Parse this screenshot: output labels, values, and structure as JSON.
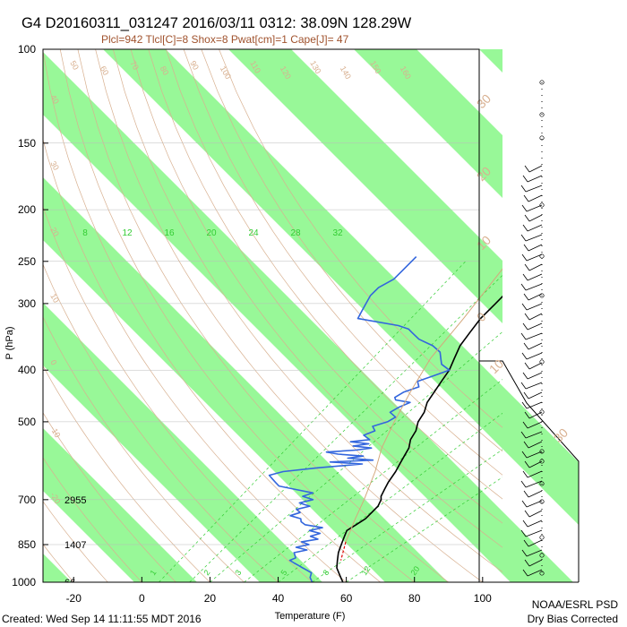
{
  "header": {
    "title": "G4 D20160311_031247 2016/03/11 0312: 38.09N 128.29W",
    "indices": "Plcl=942 Tlcl[C]=8 Shox=8 Pwat[cm]=1 Cape[J]= 47"
  },
  "footer": {
    "created": "Created: Wed Sep 14 11:11:55 MDT 2016",
    "credit_line1": "NOAA/ESRL PSD",
    "credit_line2": "Dry Bias Corrected"
  },
  "colors": {
    "green_band": "#98f898",
    "dry_adiabat": "#d8b090",
    "mixing_ratio": "#33cc33",
    "temperature": "#000000",
    "dewpoint": "#3366dd",
    "parcel": "#d4a87c",
    "lcl_segment": "#dd0000"
  },
  "chart_data": {
    "type": "line",
    "title": "",
    "xlabel": "Temperature (F)",
    "ylabel": "P (hPa)",
    "y_scale": "log (pressure)",
    "y_ticks": [
      1000,
      850,
      700,
      500,
      400,
      300,
      250,
      200,
      150,
      100
    ],
    "x_ticks": [
      -20,
      0,
      20,
      40,
      60,
      80,
      100
    ],
    "xlim": [
      -29,
      99
    ],
    "ylim": [
      1000,
      100
    ],
    "height_labels": [
      {
        "pressure": 1000,
        "label": "66"
      },
      {
        "pressure": 850,
        "label": "1407"
      },
      {
        "pressure": 700,
        "label": "2955"
      }
    ],
    "mixing_ratio_labels": [
      "8",
      "12",
      "16",
      "20",
      "24",
      "28",
      "32"
    ],
    "mixing_ratio_bottom_labels": [
      "1",
      "2",
      "3",
      "5",
      "8",
      "12",
      "20"
    ],
    "dry_adiabat_labels": [
      "50",
      "60",
      "70",
      "80",
      "90",
      "100",
      "110",
      "120",
      "130",
      "140",
      "150",
      "160"
    ],
    "left_adiabat_labels": [
      "40",
      "30",
      "20",
      "10",
      "0",
      "-10",
      "-20"
    ],
    "isotherm_labels": [
      "30",
      "20",
      "10",
      "0",
      "10",
      "30"
    ],
    "series": [
      {
        "name": "Temperature",
        "points": [
          [
            59,
            1000
          ],
          [
            56,
            970
          ],
          [
            53,
            940
          ],
          [
            51,
            910
          ],
          [
            49,
            880
          ],
          [
            48,
            860
          ],
          [
            47,
            840
          ],
          [
            46,
            820
          ],
          [
            45,
            800
          ],
          [
            46,
            780
          ],
          [
            47,
            760
          ],
          [
            47,
            740
          ],
          [
            47,
            720
          ],
          [
            46,
            700
          ],
          [
            45,
            690
          ],
          [
            44,
            670
          ],
          [
            43,
            650
          ],
          [
            42,
            620
          ],
          [
            41,
            600
          ],
          [
            40,
            580
          ],
          [
            39,
            560
          ],
          [
            37,
            540
          ],
          [
            36,
            520
          ],
          [
            34,
            500
          ],
          [
            33,
            480
          ],
          [
            31,
            460
          ],
          [
            30,
            440
          ],
          [
            29,
            420
          ],
          [
            28,
            400
          ],
          [
            26,
            380
          ],
          [
            24,
            360
          ],
          [
            23,
            340
          ],
          [
            22,
            320
          ],
          [
            22,
            300
          ],
          [
            22,
            285
          ],
          [
            22,
            270
          ],
          [
            23,
            250
          ],
          [
            24,
            240
          ],
          [
            26,
            220
          ],
          [
            28,
            210
          ],
          [
            31,
            200
          ],
          [
            34,
            195
          ],
          [
            37,
            190
          ],
          [
            40,
            180
          ],
          [
            41,
            175
          ],
          [
            42,
            170
          ]
        ]
      },
      {
        "name": "Dewpoint",
        "points": [
          [
            50,
            1000
          ],
          [
            48,
            980
          ],
          [
            47,
            960
          ],
          [
            45,
            950
          ],
          [
            43,
            940
          ],
          [
            41,
            930
          ],
          [
            39,
            920
          ],
          [
            37,
            910
          ],
          [
            38,
            900
          ],
          [
            36,
            880
          ],
          [
            39,
            870
          ],
          [
            35,
            860
          ],
          [
            38,
            850
          ],
          [
            35,
            840
          ],
          [
            39,
            830
          ],
          [
            36,
            820
          ],
          [
            38,
            810
          ],
          [
            34,
            800
          ],
          [
            37,
            790
          ],
          [
            31,
            780
          ],
          [
            29,
            770
          ],
          [
            28,
            760
          ],
          [
            24,
            750
          ],
          [
            26,
            740
          ],
          [
            24,
            730
          ],
          [
            27,
            720
          ],
          [
            23,
            710
          ],
          [
            26,
            700
          ],
          [
            22,
            690
          ],
          [
            24,
            680
          ],
          [
            18,
            670
          ],
          [
            12,
            660
          ],
          [
            10,
            650
          ],
          [
            8,
            640
          ],
          [
            6,
            630
          ],
          [
            9,
            620
          ],
          [
            18,
            610
          ],
          [
            30,
            600
          ],
          [
            20,
            595
          ],
          [
            32,
            590
          ],
          [
            24,
            585
          ],
          [
            28,
            580
          ],
          [
            20,
            575
          ],
          [
            16,
            570
          ],
          [
            24,
            565
          ],
          [
            28,
            560
          ],
          [
            22,
            555
          ],
          [
            26,
            550
          ],
          [
            20,
            545
          ],
          [
            25,
            540
          ],
          [
            22,
            530
          ],
          [
            24,
            520
          ],
          [
            22,
            510
          ],
          [
            25,
            500
          ],
          [
            26,
            490
          ],
          [
            23,
            480
          ],
          [
            24,
            470
          ],
          [
            26,
            460
          ],
          [
            21,
            455
          ],
          [
            20,
            450
          ],
          [
            21,
            440
          ],
          [
            24,
            430
          ],
          [
            22,
            420
          ],
          [
            25,
            410
          ],
          [
            28,
            400
          ],
          [
            24,
            390
          ],
          [
            22,
            380
          ],
          [
            20,
            370
          ],
          [
            16,
            360
          ],
          [
            10,
            350
          ],
          [
            6,
            340
          ],
          [
            4,
            335
          ],
          [
            0,
            330
          ],
          [
            -14,
            320
          ],
          [
            -15,
            310
          ],
          [
            -16,
            300
          ],
          [
            -17,
            290
          ],
          [
            -17,
            280
          ],
          [
            -15,
            270
          ],
          [
            -15,
            260
          ],
          [
            -15,
            245
          ]
        ]
      },
      {
        "name": "Parcel",
        "points": [
          [
            48,
            840
          ],
          [
            44,
            760
          ],
          [
            41,
            700
          ],
          [
            36,
            620
          ],
          [
            31,
            560
          ],
          [
            27,
            500
          ],
          [
            23,
            440
          ],
          [
            19,
            380
          ],
          [
            17,
            320
          ],
          [
            14,
            260
          ],
          [
            13,
            240
          ],
          [
            14,
            225
          ]
        ]
      }
    ]
  }
}
